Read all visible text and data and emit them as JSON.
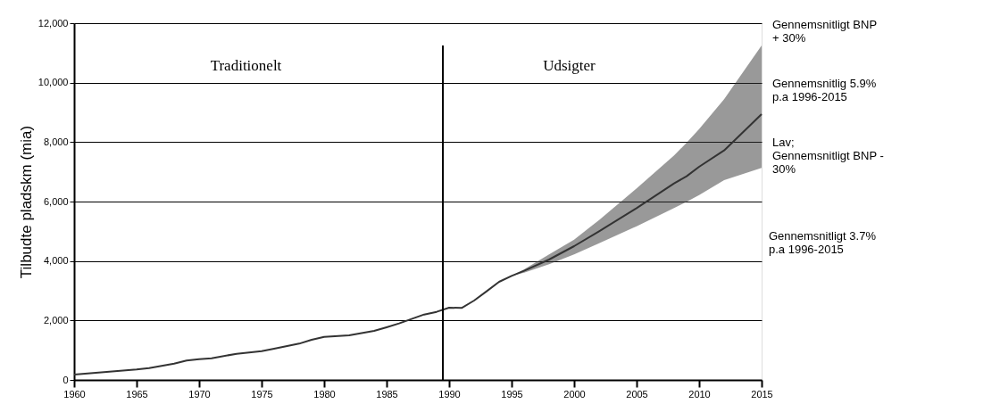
{
  "chart_data": {
    "type": "line",
    "ylabel": "Tilbudte pladskm  (mia)",
    "x": [
      1960,
      1965,
      1966,
      1968,
      1969,
      1970,
      1971,
      1973,
      1975,
      1976,
      1978,
      1979,
      1980,
      1982,
      1984,
      1985,
      1986,
      1987,
      1988,
      1989,
      1990,
      1991,
      1992,
      1993,
      1994,
      1995,
      1996,
      1998,
      2000,
      2002,
      2005,
      2008,
      2009,
      2010,
      2012,
      2015
    ],
    "series": [
      {
        "color": "#333333",
        "values": [
          180,
          350,
          400,
          550,
          650,
          700,
          730,
          880,
          970,
          1050,
          1220,
          1350,
          1450,
          1500,
          1650,
          1770,
          1900,
          2050,
          2200,
          2290,
          2430,
          2420,
          2670,
          2980,
          3300,
          3500,
          3670,
          4050,
          4500,
          5000,
          5780,
          6610,
          6850,
          7170,
          7720,
          8940
        ],
        "lower": [
          null,
          null,
          null,
          null,
          null,
          null,
          null,
          null,
          null,
          null,
          null,
          null,
          null,
          null,
          null,
          null,
          null,
          null,
          null,
          null,
          null,
          null,
          null,
          null,
          3300,
          3500,
          3610,
          3890,
          4220,
          4600,
          5170,
          5780,
          5990,
          6220,
          6720,
          7130
        ],
        "upper": [
          null,
          null,
          null,
          null,
          null,
          null,
          null,
          null,
          null,
          null,
          null,
          null,
          null,
          null,
          null,
          null,
          null,
          null,
          null,
          null,
          null,
          null,
          null,
          null,
          3300,
          3500,
          3720,
          4220,
          4720,
          5380,
          6440,
          7550,
          7980,
          8440,
          9440,
          11250
        ]
      }
    ],
    "xlim": [
      1960,
      2015
    ],
    "xticks": [
      1960,
      1965,
      1970,
      1975,
      1980,
      1985,
      1990,
      1995,
      2000,
      2005,
      2010,
      2015
    ],
    "ylim": [
      0,
      12000
    ],
    "yticks": [
      0,
      {
        "value": 2000,
        "label": "2,000"
      },
      {
        "value": 4000,
        "label": "4,000"
      },
      {
        "value": 6000,
        "label": "6,000"
      },
      {
        "value": 8000,
        "label": "8,000"
      },
      {
        "value": 10000,
        "label": "10,000"
      },
      {
        "value": 12000,
        "label": "12,000"
      }
    ],
    "grid": "y",
    "ref_lines": [
      {
        "axis": "x",
        "value": 1989.5,
        "color": "#000000"
      }
    ],
    "annotations": [
      "Traditionelt",
      "Udsigter",
      "Gennemsnitligt BNP\n+ 30%",
      "Gennemsnitlig 5.9%\np.a 1996-2015",
      "Lav;\nGennemsnitligt BNP -\n30%",
      "Gennemsnitligt 3.7%\np.a 1996-2015"
    ]
  }
}
